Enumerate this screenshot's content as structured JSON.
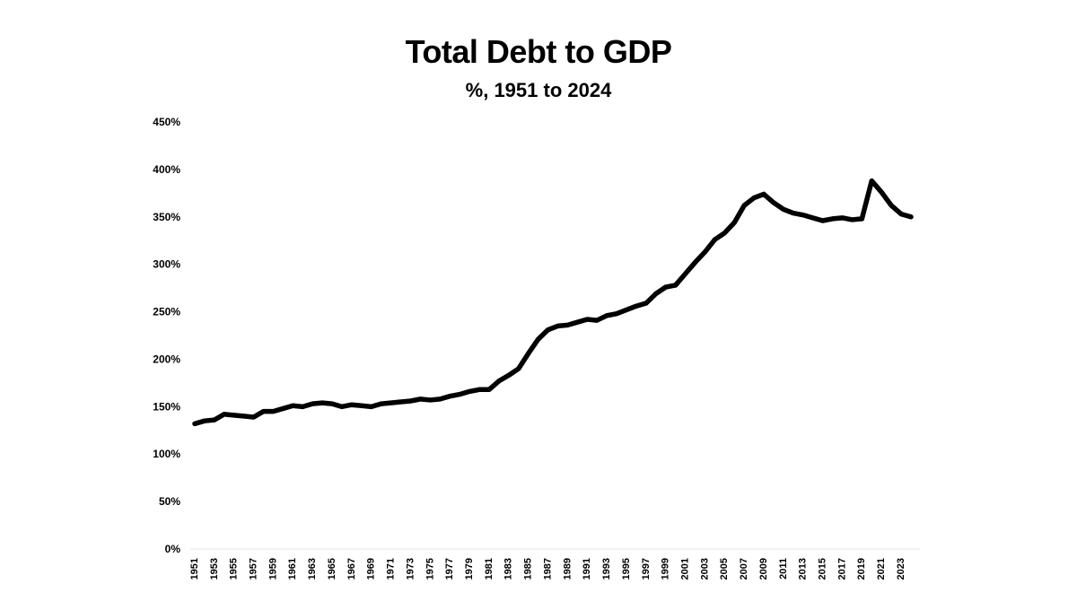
{
  "chart_data": {
    "type": "line",
    "title": "Total Debt to GDP",
    "subtitle": "%, 1951 to 2024",
    "xlabel": "",
    "ylabel": "",
    "ylim": [
      0,
      450
    ],
    "ytick_values": [
      0,
      50,
      100,
      150,
      200,
      250,
      300,
      350,
      400,
      450
    ],
    "ytick_labels": [
      "0%",
      "50%",
      "100%",
      "150%",
      "200%",
      "250%",
      "300%",
      "350%",
      "400%",
      "450%"
    ],
    "xtick_labels": [
      "1951",
      "1953",
      "1955",
      "1957",
      "1959",
      "1961",
      "1963",
      "1965",
      "1967",
      "1969",
      "1971",
      "1973",
      "1975",
      "1977",
      "1979",
      "1981",
      "1983",
      "1985",
      "1987",
      "1989",
      "1991",
      "1993",
      "1995",
      "1997",
      "1999",
      "2001",
      "2003",
      "2005",
      "2007",
      "2009",
      "2011",
      "2013",
      "2015",
      "2017",
      "2019",
      "2021",
      "2023"
    ],
    "grid": false,
    "line_color": "#000000",
    "x": [
      1951,
      1952,
      1953,
      1954,
      1955,
      1956,
      1957,
      1958,
      1959,
      1960,
      1961,
      1962,
      1963,
      1964,
      1965,
      1966,
      1967,
      1968,
      1969,
      1970,
      1971,
      1972,
      1973,
      1974,
      1975,
      1976,
      1977,
      1978,
      1979,
      1980,
      1981,
      1982,
      1983,
      1984,
      1985,
      1986,
      1987,
      1988,
      1989,
      1990,
      1991,
      1992,
      1993,
      1994,
      1995,
      1996,
      1997,
      1998,
      1999,
      2000,
      2001,
      2002,
      2003,
      2004,
      2005,
      2006,
      2007,
      2008,
      2009,
      2010,
      2011,
      2012,
      2013,
      2014,
      2015,
      2016,
      2017,
      2018,
      2019,
      2020,
      2021,
      2022,
      2023,
      2024
    ],
    "values": [
      132,
      135,
      136,
      142,
      141,
      140,
      139,
      145,
      145,
      148,
      151,
      150,
      153,
      154,
      153,
      150,
      152,
      151,
      150,
      153,
      154,
      155,
      156,
      158,
      157,
      158,
      161,
      163,
      166,
      168,
      168,
      177,
      183,
      190,
      206,
      221,
      231,
      235,
      236,
      239,
      242,
      241,
      246,
      248,
      252,
      256,
      259,
      269,
      276,
      278,
      290,
      302,
      313,
      326,
      333,
      344,
      362,
      370,
      374,
      365,
      358,
      354,
      352,
      349,
      346,
      348,
      349,
      347,
      348,
      388,
      376,
      362,
      353,
      350
    ]
  }
}
